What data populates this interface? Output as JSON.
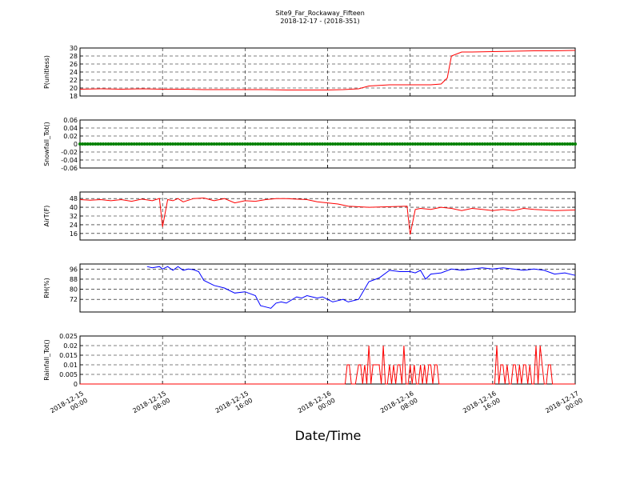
{
  "figure": {
    "title": "Site9_Far_Rockaway_Fifteen",
    "subtitle": "2018-12-17 - (2018-351)",
    "xlabel": "Date/Time",
    "x_ticks": [
      "2018-12-15\n00:00",
      "2018-12-15\n08:00",
      "2018-12-15\n16:00",
      "2018-12-16\n00:00",
      "2018-12-16\n08:00",
      "2018-12-16\n16:00",
      "2018-12-17\n00:00"
    ]
  },
  "chart_data": [
    {
      "type": "line",
      "ylabel": "P(unitless)",
      "ylim": [
        18,
        30
      ],
      "yticks": [
        18,
        20,
        22,
        24,
        26,
        28,
        30
      ],
      "color": "#ff0000",
      "grid": true,
      "x_hours": [
        0,
        2,
        4,
        6,
        8,
        10,
        12,
        14,
        16,
        18,
        20,
        22,
        24,
        25.5,
        27,
        28,
        30,
        32,
        34,
        35,
        35.6,
        36,
        37,
        38,
        40,
        42,
        44,
        46,
        48
      ],
      "values": [
        19.7,
        19.8,
        19.7,
        19.8,
        19.7,
        19.7,
        19.6,
        19.6,
        19.6,
        19.6,
        19.5,
        19.5,
        19.5,
        19.6,
        19.8,
        20.5,
        20.8,
        20.8,
        20.8,
        21,
        22.5,
        28,
        29,
        29,
        29.1,
        29.2,
        29.3,
        29.3,
        29.4
      ]
    },
    {
      "type": "scatter",
      "ylabel": "Snowfall_Tot()",
      "ylim": [
        -0.06,
        0.06
      ],
      "yticks": [
        -0.06,
        -0.04,
        -0.02,
        0.0,
        0.02,
        0.04,
        0.06
      ],
      "color": "#008000",
      "grid": true,
      "x_range_hours": [
        0,
        48
      ],
      "constant_value": 0.0
    },
    {
      "type": "line",
      "ylabel": "AirT(F)",
      "ylim": [
        10,
        54
      ],
      "yticks": [
        16,
        24,
        32,
        40,
        48
      ],
      "color": "#ff0000",
      "grid": true,
      "x_hours": [
        0,
        1,
        2,
        3,
        4,
        5,
        6,
        7,
        7.7,
        8,
        8.5,
        9,
        9.5,
        10,
        11,
        12,
        13,
        14,
        15,
        16,
        17,
        18,
        19,
        20,
        21,
        22,
        23,
        24,
        25,
        26,
        28,
        30,
        31.7,
        32,
        32.5,
        33,
        34,
        35,
        36,
        37,
        38,
        39,
        40,
        41,
        42,
        43,
        44,
        46,
        48
      ],
      "values": [
        47,
        46.5,
        47,
        46,
        47,
        45.5,
        47.5,
        46,
        48,
        22,
        47,
        46,
        48,
        45,
        48,
        48.5,
        46,
        48,
        44,
        46,
        45.5,
        47,
        48,
        48,
        47.5,
        47,
        45,
        44,
        43,
        41,
        40,
        40.5,
        41,
        15,
        38,
        39,
        38,
        40,
        39,
        37,
        39,
        38,
        37,
        38,
        37,
        39,
        38,
        37,
        37.5
      ]
    },
    {
      "type": "line",
      "ylabel": "RH(%)",
      "ylim": [
        62,
        100
      ],
      "yticks": [
        72,
        80,
        88,
        96
      ],
      "color": "#0000ff",
      "grid": true,
      "x_hours": [
        6.5,
        7,
        7.7,
        8,
        8.5,
        9,
        9.5,
        10,
        10.5,
        11,
        11.5,
        12,
        13,
        14,
        15,
        16,
        17,
        17.5,
        18,
        18.5,
        19,
        19.5,
        20,
        21,
        21.5,
        22,
        22.5,
        23,
        23.5,
        24,
        24.5,
        25,
        25.5,
        26,
        27,
        28,
        29,
        30,
        31,
        32,
        32.5,
        33,
        33.5,
        34,
        35,
        36,
        37,
        38,
        39,
        40,
        41,
        42,
        43,
        44,
        45,
        46,
        47,
        48
      ],
      "values": [
        98,
        97,
        98,
        96,
        98,
        95,
        98,
        95,
        96,
        95.5,
        94,
        87,
        83,
        81,
        77,
        78,
        75,
        67,
        66,
        65,
        69,
        70,
        69,
        74,
        73,
        75,
        74,
        73,
        74,
        72,
        70,
        71,
        72,
        70,
        72,
        86,
        89,
        95,
        94,
        94,
        93,
        95,
        88,
        92,
        93,
        96,
        95,
        96,
        97,
        96,
        97,
        96,
        95,
        96,
        95,
        92,
        93,
        91
      ]
    },
    {
      "type": "line",
      "ylabel": "Rainfall_Tot()",
      "ylim": [
        0,
        0.025
      ],
      "yticks": [
        0.0,
        0.005,
        0.01,
        0.015,
        0.02,
        0.025
      ],
      "color": "#ff0000",
      "grid": true,
      "x_hours": [
        0,
        25.7,
        25.9,
        26.1,
        26.3,
        26.5,
        26.7,
        27,
        27.2,
        27.4,
        27.6,
        27.8,
        28,
        28.2,
        28.4,
        28.6,
        28.8,
        29,
        29.2,
        29.4,
        29.6,
        29.8,
        30,
        30.2,
        30.4,
        30.6,
        30.8,
        31,
        31.2,
        31.4,
        31.6,
        31.8,
        32,
        32.2,
        32.4,
        32.6,
        32.8,
        33,
        33.2,
        33.4,
        33.6,
        33.8,
        34,
        34.2,
        34.4,
        34.6,
        34.8,
        35,
        35.2,
        35.4,
        35.6,
        35.8,
        36,
        36.2,
        36.4,
        36.6,
        36.8,
        37,
        37.2,
        40.2,
        40.4,
        40.6,
        40.8,
        41,
        41.2,
        41.4,
        41.6,
        41.8,
        42,
        42.2,
        42.4,
        42.6,
        42.8,
        43,
        43.2,
        43.4,
        43.6,
        43.8,
        44,
        44.2,
        44.4,
        44.6,
        44.8,
        45,
        45.2,
        45.4,
        45.6,
        45.8,
        46,
        46.2,
        46.4,
        46.6,
        46.8,
        47,
        47.2,
        48
      ],
      "values": [
        0,
        0,
        0.01,
        0.01,
        0,
        0,
        0,
        0.01,
        0.01,
        0,
        0.01,
        0,
        0.02,
        0,
        0.01,
        0.01,
        0.01,
        0.01,
        0,
        0.02,
        0,
        0,
        0.01,
        0,
        0.01,
        0,
        0.01,
        0.01,
        0,
        0.02,
        0,
        0,
        0.01,
        0,
        0.01,
        0,
        0,
        0.01,
        0,
        0.01,
        0,
        0.01,
        0.01,
        0,
        0.01,
        0.01,
        0,
        0,
        0,
        0,
        0,
        0,
        0,
        0,
        0,
        0,
        0,
        0,
        0,
        0,
        0.02,
        0,
        0.01,
        0.01,
        0,
        0.01,
        0,
        0,
        0.01,
        0.01,
        0,
        0.01,
        0,
        0.01,
        0.01,
        0,
        0.01,
        0,
        0,
        0.02,
        0,
        0.02,
        0.01,
        0,
        0,
        0.01,
        0.01,
        0,
        0,
        0,
        0,
        0,
        0,
        0,
        0,
        0
      ]
    }
  ]
}
